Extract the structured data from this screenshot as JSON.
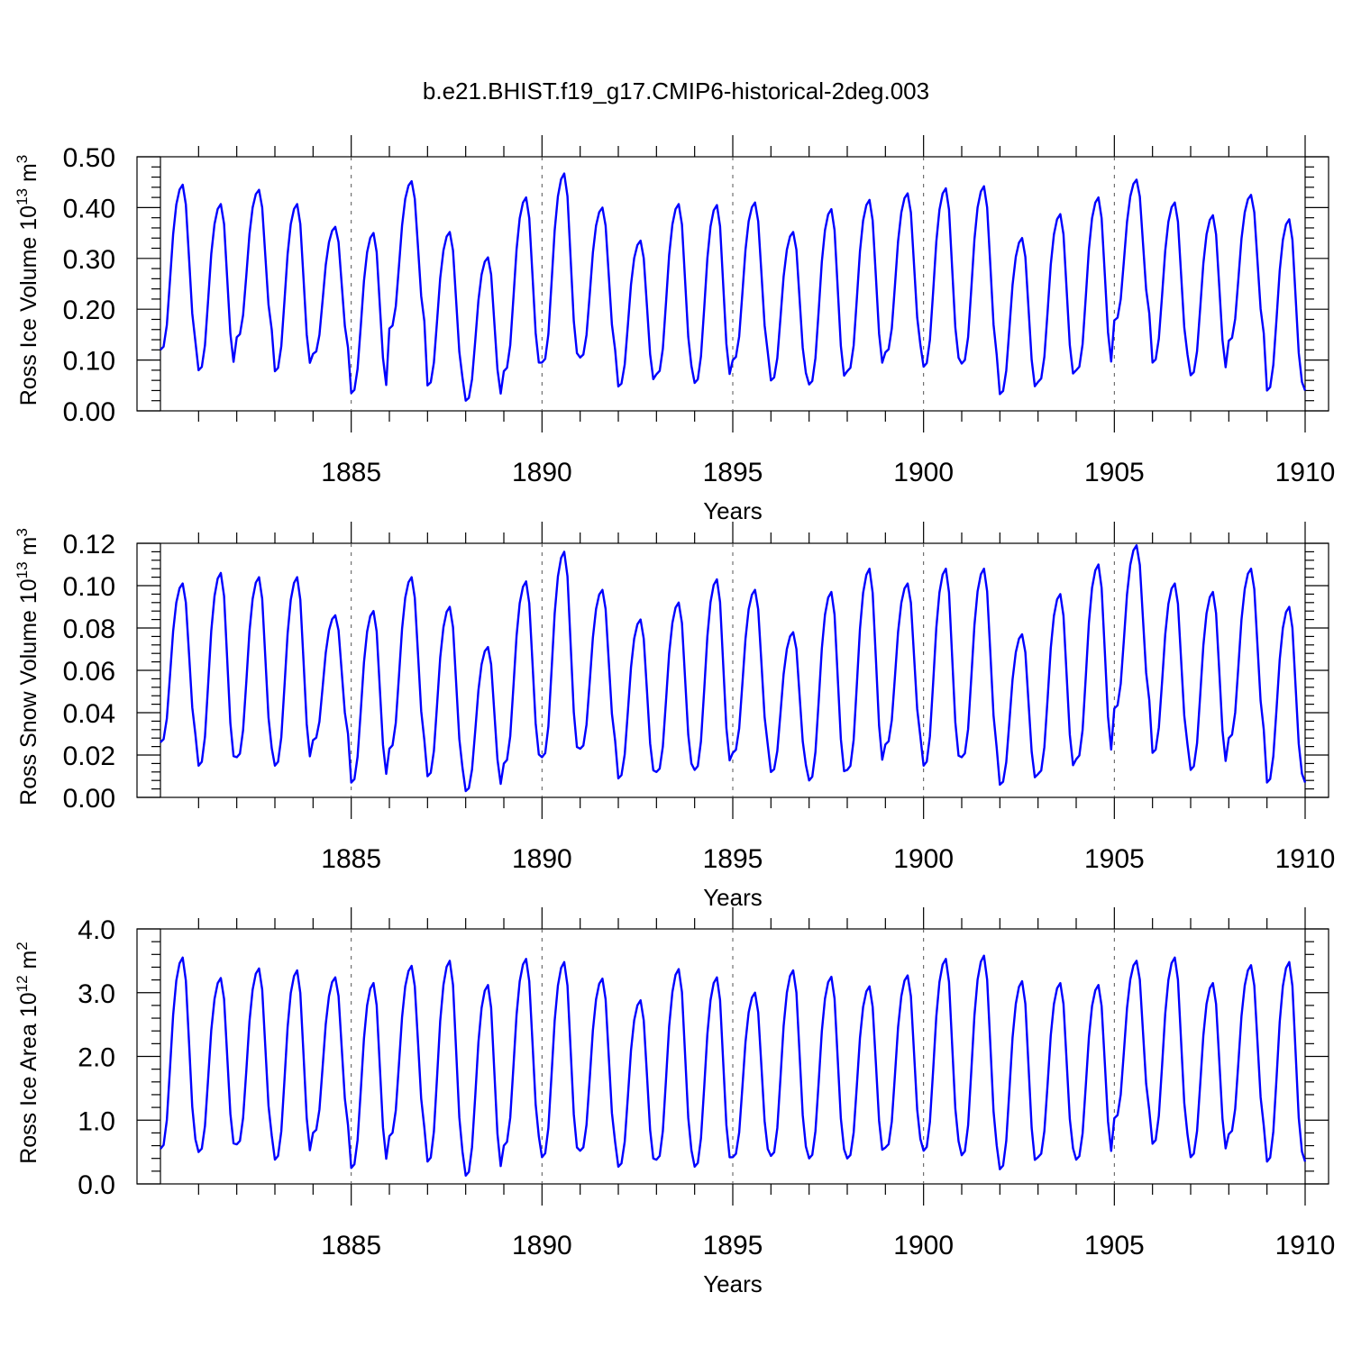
{
  "figure_title": "b.e21.BHIST.f19_g17.CMIP6-historical-2deg.003",
  "colors": {
    "series": "#0000ff",
    "axis": "#000000"
  },
  "chart_data": [
    {
      "type": "line",
      "ylabel": {
        "text": "Ross Ice Volume 10",
        "exp": "13",
        "unit": " m",
        "unit_exp": "3"
      },
      "xlabel": "Years",
      "xlim": [
        1880,
        1910
      ],
      "ylim": [
        0,
        0.5
      ],
      "yticks": [
        0.0,
        0.1,
        0.2,
        0.3,
        0.4,
        0.5
      ],
      "ytick_labels": [
        "0.00",
        "0.10",
        "0.20",
        "0.30",
        "0.40",
        "0.50"
      ],
      "xticks": [
        1885,
        1890,
        1895,
        1900,
        1905,
        1910
      ],
      "xtick_labels": [
        "1885",
        "1890",
        "1895",
        "1900",
        "1905",
        "1910"
      ],
      "minima": [
        0.12,
        0.08,
        0.145,
        0.078,
        0.112,
        0.035,
        0.162,
        0.05,
        0.02,
        0.078,
        0.095,
        0.105,
        0.048,
        0.072,
        0.055,
        0.1,
        0.06,
        0.052,
        0.078,
        0.115,
        0.087,
        0.093,
        0.033,
        0.057,
        0.08,
        0.178,
        0.095,
        0.07,
        0.138,
        0.04
      ],
      "maxima": [
        0.445,
        0.407,
        0.435,
        0.407,
        0.362,
        0.35,
        0.452,
        0.352,
        0.302,
        0.42,
        0.467,
        0.4,
        0.335,
        0.407,
        0.405,
        0.41,
        0.352,
        0.397,
        0.415,
        0.428,
        0.438,
        0.442,
        0.34,
        0.387,
        0.42,
        0.455,
        0.41,
        0.385,
        0.425,
        0.377
      ],
      "series": [
        {
          "name": "Ross Ice Volume",
          "values": []
        }
      ]
    },
    {
      "type": "line",
      "ylabel": {
        "text": "Ross Snow Volume 10",
        "exp": "13",
        "unit": " m",
        "unit_exp": "3"
      },
      "xlabel": "Years",
      "xlim": [
        1880,
        1910
      ],
      "ylim": [
        0,
        0.12
      ],
      "yticks": [
        0.0,
        0.02,
        0.04,
        0.06,
        0.08,
        0.1,
        0.12
      ],
      "ytick_labels": [
        "0.00",
        "0.02",
        "0.04",
        "0.06",
        "0.08",
        "0.10",
        "0.12"
      ],
      "xticks": [
        1885,
        1890,
        1895,
        1900,
        1905,
        1910
      ],
      "xtick_labels": [
        "1885",
        "1890",
        "1895",
        "1900",
        "1905",
        "1910"
      ],
      "minima": [
        0.026,
        0.015,
        0.019,
        0.015,
        0.027,
        0.007,
        0.023,
        0.01,
        0.003,
        0.016,
        0.019,
        0.023,
        0.009,
        0.012,
        0.013,
        0.021,
        0.012,
        0.008,
        0.013,
        0.025,
        0.015,
        0.019,
        0.006,
        0.011,
        0.018,
        0.042,
        0.021,
        0.013,
        0.028,
        0.007
      ],
      "maxima": [
        0.101,
        0.106,
        0.104,
        0.104,
        0.086,
        0.088,
        0.104,
        0.09,
        0.071,
        0.102,
        0.116,
        0.098,
        0.084,
        0.092,
        0.103,
        0.098,
        0.078,
        0.097,
        0.108,
        0.101,
        0.108,
        0.108,
        0.077,
        0.096,
        0.11,
        0.119,
        0.101,
        0.097,
        0.108,
        0.09
      ],
      "series": [
        {
          "name": "Ross Snow Volume",
          "values": []
        }
      ]
    },
    {
      "type": "line",
      "ylabel": {
        "text": "Ross Ice Area 10",
        "exp": "12",
        "unit": " m",
        "unit_exp": "2"
      },
      "xlabel": "Years",
      "xlim": [
        1880,
        1910
      ],
      "ylim": [
        0,
        4
      ],
      "yticks": [
        0.0,
        1.0,
        2.0,
        3.0,
        4.0
      ],
      "ytick_labels": [
        "0.0",
        "1.0",
        "2.0",
        "3.0",
        "4.0"
      ],
      "xticks": [
        1885,
        1890,
        1895,
        1900,
        1905,
        1910
      ],
      "xtick_labels": [
        "1885",
        "1890",
        "1895",
        "1900",
        "1905",
        "1910"
      ],
      "minima": [
        0.55,
        0.5,
        0.62,
        0.38,
        0.8,
        0.25,
        0.75,
        0.35,
        0.13,
        0.6,
        0.42,
        0.52,
        0.27,
        0.38,
        0.27,
        0.42,
        0.44,
        0.4,
        0.4,
        0.57,
        0.52,
        0.45,
        0.23,
        0.42,
        0.38,
        1.03,
        0.63,
        0.42,
        0.78,
        0.35
      ],
      "maxima": [
        3.55,
        3.23,
        3.38,
        3.35,
        3.24,
        3.15,
        3.42,
        3.5,
        3.12,
        3.53,
        3.48,
        3.22,
        2.88,
        3.37,
        3.24,
        3.0,
        3.35,
        3.25,
        3.1,
        3.27,
        3.53,
        3.58,
        3.18,
        3.15,
        3.12,
        3.5,
        3.55,
        3.15,
        3.43,
        3.48
      ],
      "series": [
        {
          "name": "Ross Ice Area",
          "values": []
        }
      ]
    }
  ]
}
